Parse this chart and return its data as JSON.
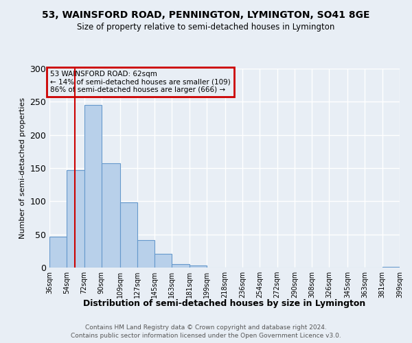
{
  "title1": "53, WAINSFORD ROAD, PENNINGTON, LYMINGTON, SO41 8GE",
  "title2": "Size of property relative to semi-detached houses in Lymington",
  "xlabel": "Distribution of semi-detached houses by size in Lymington",
  "ylabel": "Number of semi-detached properties",
  "footer1": "Contains HM Land Registry data © Crown copyright and database right 2024.",
  "footer2": "Contains public sector information licensed under the Open Government Licence v3.0.",
  "annotation_title": "53 WAINSFORD ROAD: 62sqm",
  "annotation_line1": "← 14% of semi-detached houses are smaller (109)",
  "annotation_line2": "86% of semi-detached houses are larger (666) →",
  "property_size": 62,
  "bar_edges": [
    36,
    54,
    72,
    90,
    109,
    127,
    145,
    163,
    181,
    199,
    218,
    236,
    254,
    272,
    290,
    308,
    326,
    345,
    363,
    381,
    399
  ],
  "bar_heights": [
    47,
    147,
    245,
    157,
    98,
    41,
    21,
    5,
    3,
    0,
    0,
    0,
    0,
    0,
    0,
    0,
    0,
    0,
    0,
    1
  ],
  "bar_color": "#b8d0ea",
  "bar_edge_color": "#6699cc",
  "vline_color": "#cc0000",
  "annotation_box_color": "#cc0000",
  "bg_color": "#e8eef5",
  "plot_bg_color": "#e8eef5",
  "grid_color": "#ffffff",
  "ylim": [
    0,
    300
  ],
  "yticks": [
    0,
    50,
    100,
    150,
    200,
    250,
    300
  ]
}
